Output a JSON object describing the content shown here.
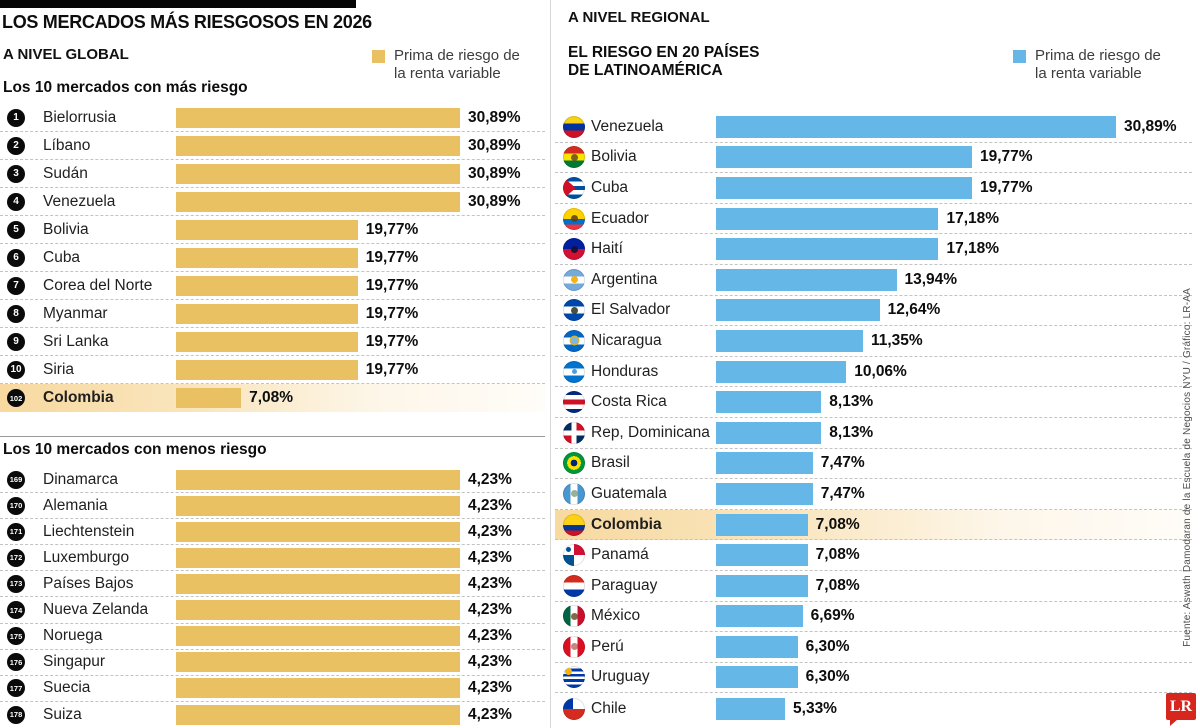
{
  "page_title": "LOS MERCADOS MÁS RIESGOSOS EN 2026",
  "left_panel": {
    "section_label": "A NIVEL GLOBAL",
    "legend": {
      "label": "Prima de riesgo de la renta variable",
      "color": "#E9C163"
    },
    "chart_most": {
      "title": "Los 10 mercados con más riesgo",
      "rows": [
        {
          "rank": "1",
          "label": "Bielorrusia",
          "value": 30.89,
          "value_label": "30,89%",
          "highlight": false
        },
        {
          "rank": "2",
          "label": "Líbano",
          "value": 30.89,
          "value_label": "30,89%",
          "highlight": false
        },
        {
          "rank": "3",
          "label": "Sudán",
          "value": 30.89,
          "value_label": "30,89%",
          "highlight": false
        },
        {
          "rank": "4",
          "label": "Venezuela",
          "value": 30.89,
          "value_label": "30,89%",
          "highlight": false
        },
        {
          "rank": "5",
          "label": "Bolivia",
          "value": 19.77,
          "value_label": "19,77%",
          "highlight": false
        },
        {
          "rank": "6",
          "label": "Cuba",
          "value": 19.77,
          "value_label": "19,77%",
          "highlight": false
        },
        {
          "rank": "7",
          "label": "Corea del Norte",
          "value": 19.77,
          "value_label": "19,77%",
          "highlight": false
        },
        {
          "rank": "8",
          "label": "Myanmar",
          "value": 19.77,
          "value_label": "19,77%",
          "highlight": false
        },
        {
          "rank": "9",
          "label": "Sri Lanka",
          "value": 19.77,
          "value_label": "19,77%",
          "highlight": false
        },
        {
          "rank": "10",
          "label": "Siria",
          "value": 19.77,
          "value_label": "19,77%",
          "highlight": false
        },
        {
          "rank": "102",
          "label": "Colombia",
          "value": 7.08,
          "value_label": "7,08%",
          "highlight": true
        }
      ]
    },
    "chart_least": {
      "title": "Los 10 mercados con menos riesgo",
      "rows": [
        {
          "rank": "169",
          "label": "Dinamarca",
          "value": 4.23,
          "value_label": "4,23%",
          "highlight": false
        },
        {
          "rank": "170",
          "label": "Alemania",
          "value": 4.23,
          "value_label": "4,23%",
          "highlight": false
        },
        {
          "rank": "171",
          "label": "Liechtenstein",
          "value": 4.23,
          "value_label": "4,23%",
          "highlight": false
        },
        {
          "rank": "172",
          "label": "Luxemburgo",
          "value": 4.23,
          "value_label": "4,23%",
          "highlight": false
        },
        {
          "rank": "173",
          "label": "Países Bajos",
          "value": 4.23,
          "value_label": "4,23%",
          "highlight": false
        },
        {
          "rank": "174",
          "label": "Nueva Zelanda",
          "value": 4.23,
          "value_label": "4,23%",
          "highlight": false
        },
        {
          "rank": "175",
          "label": "Noruega",
          "value": 4.23,
          "value_label": "4,23%",
          "highlight": false
        },
        {
          "rank": "176",
          "label": "Singapur",
          "value": 4.23,
          "value_label": "4,23%",
          "highlight": false
        },
        {
          "rank": "177",
          "label": "Suecia",
          "value": 4.23,
          "value_label": "4,23%",
          "highlight": false
        },
        {
          "rank": "178",
          "label": "Suiza",
          "value": 4.23,
          "value_label": "4,23%",
          "highlight": false
        }
      ]
    }
  },
  "right_panel": {
    "section_label": "A NIVEL REGIONAL",
    "title_line1": "EL RIESGO EN 20 PAÍSES",
    "title_line2": "DE LATINOAMÉRICA",
    "legend": {
      "label": "Prima de riesgo de la renta variable",
      "color": "#64B7E6"
    },
    "rows": [
      {
        "flag": "venezuela",
        "label": "Venezuela",
        "value": 30.89,
        "value_label": "30,89%",
        "highlight": false
      },
      {
        "flag": "bolivia",
        "label": "Bolivia",
        "value": 19.77,
        "value_label": "19,77%",
        "highlight": false
      },
      {
        "flag": "cuba",
        "label": "Cuba",
        "value": 19.77,
        "value_label": "19,77%",
        "highlight": false
      },
      {
        "flag": "ecuador",
        "label": "Ecuador",
        "value": 17.18,
        "value_label": "17,18%",
        "highlight": false
      },
      {
        "flag": "haiti",
        "label": "Haití",
        "value": 17.18,
        "value_label": "17,18%",
        "highlight": false
      },
      {
        "flag": "argentina",
        "label": "Argentina",
        "value": 13.94,
        "value_label": "13,94%",
        "highlight": false
      },
      {
        "flag": "el-salvador",
        "label": "El Salvador",
        "value": 12.64,
        "value_label": "12,64%",
        "highlight": false
      },
      {
        "flag": "nicaragua",
        "label": "Nicaragua",
        "value": 11.35,
        "value_label": "11,35%",
        "highlight": false
      },
      {
        "flag": "honduras",
        "label": "Honduras",
        "value": 10.06,
        "value_label": "10,06%",
        "highlight": false
      },
      {
        "flag": "costa-rica",
        "label": "Costa Rica",
        "value": 8.13,
        "value_label": "8,13%",
        "highlight": false
      },
      {
        "flag": "dominicana",
        "label": "Rep, Dominicana",
        "value": 8.13,
        "value_label": "8,13%",
        "highlight": false
      },
      {
        "flag": "brasil",
        "label": "Brasil",
        "value": 7.47,
        "value_label": "7,47%",
        "highlight": false
      },
      {
        "flag": "guatemala",
        "label": "Guatemala",
        "value": 7.47,
        "value_label": "7,47%",
        "highlight": false
      },
      {
        "flag": "colombia",
        "label": "Colombia",
        "value": 7.08,
        "value_label": "7,08%",
        "highlight": true
      },
      {
        "flag": "panama",
        "label": "Panamá",
        "value": 7.08,
        "value_label": "7,08%",
        "highlight": false
      },
      {
        "flag": "paraguay",
        "label": "Paraguay",
        "value": 7.08,
        "value_label": "7,08%",
        "highlight": false
      },
      {
        "flag": "mexico",
        "label": "México",
        "value": 6.69,
        "value_label": "6,69%",
        "highlight": false
      },
      {
        "flag": "peru",
        "label": "Perú",
        "value": 6.3,
        "value_label": "6,30%",
        "highlight": false
      },
      {
        "flag": "uruguay",
        "label": "Uruguay",
        "value": 6.3,
        "value_label": "6,30%",
        "highlight": false
      },
      {
        "flag": "chile",
        "label": "Chile",
        "value": 5.33,
        "value_label": "5,33%",
        "highlight": false
      }
    ]
  },
  "footer": {
    "source_credit": "Fuente: Aswath Damodaran de la Escuela de Negocios NYU / Gráfico: LR-AA",
    "logo_label": "LR"
  },
  "chart_data": [
    {
      "type": "bar",
      "title": "Los 10 mercados con más riesgo (A NIVEL GLOBAL)",
      "categories": [
        "Bielorrusia",
        "Líbano",
        "Sudán",
        "Venezuela",
        "Bolivia",
        "Cuba",
        "Corea del Norte",
        "Myanmar",
        "Sri Lanka",
        "Siria",
        "Colombia"
      ],
      "ranks": [
        1,
        2,
        3,
        4,
        5,
        6,
        7,
        8,
        9,
        10,
        102
      ],
      "values": [
        30.89,
        30.89,
        30.89,
        30.89,
        19.77,
        19.77,
        19.77,
        19.77,
        19.77,
        19.77,
        7.08
      ],
      "unit": "%",
      "series_label": "Prima de riesgo de la renta variable",
      "orientation": "horizontal",
      "bar_color": "#E9C163",
      "highlight_category": "Colombia",
      "xlim": [
        0,
        30.89
      ]
    },
    {
      "type": "bar",
      "title": "Los 10 mercados con menos riesgo (A NIVEL GLOBAL)",
      "categories": [
        "Dinamarca",
        "Alemania",
        "Liechtenstein",
        "Luxemburgo",
        "Países Bajos",
        "Nueva Zelanda",
        "Noruega",
        "Singapur",
        "Suecia",
        "Suiza"
      ],
      "ranks": [
        169,
        170,
        171,
        172,
        173,
        174,
        175,
        176,
        177,
        178
      ],
      "values": [
        4.23,
        4.23,
        4.23,
        4.23,
        4.23,
        4.23,
        4.23,
        4.23,
        4.23,
        4.23
      ],
      "unit": "%",
      "series_label": "Prima de riesgo de la renta variable",
      "orientation": "horizontal",
      "bar_color": "#E9C163",
      "xlim": [
        0,
        4.23
      ]
    },
    {
      "type": "bar",
      "title": "EL RIESGO EN 20 PAÍSES DE LATINOAMÉRICA (A NIVEL REGIONAL)",
      "categories": [
        "Venezuela",
        "Bolivia",
        "Cuba",
        "Ecuador",
        "Haití",
        "Argentina",
        "El Salvador",
        "Nicaragua",
        "Honduras",
        "Costa Rica",
        "Rep, Dominicana",
        "Brasil",
        "Guatemala",
        "Colombia",
        "Panamá",
        "Paraguay",
        "México",
        "Perú",
        "Uruguay",
        "Chile"
      ],
      "values": [
        30.89,
        19.77,
        19.77,
        17.18,
        17.18,
        13.94,
        12.64,
        11.35,
        10.06,
        8.13,
        8.13,
        7.47,
        7.47,
        7.08,
        7.08,
        7.08,
        6.69,
        6.3,
        6.3,
        5.33
      ],
      "unit": "%",
      "series_label": "Prima de riesgo de la renta variable",
      "orientation": "horizontal",
      "bar_color": "#64B7E6",
      "highlight_category": "Colombia",
      "xlim": [
        0,
        30.89
      ]
    }
  ]
}
